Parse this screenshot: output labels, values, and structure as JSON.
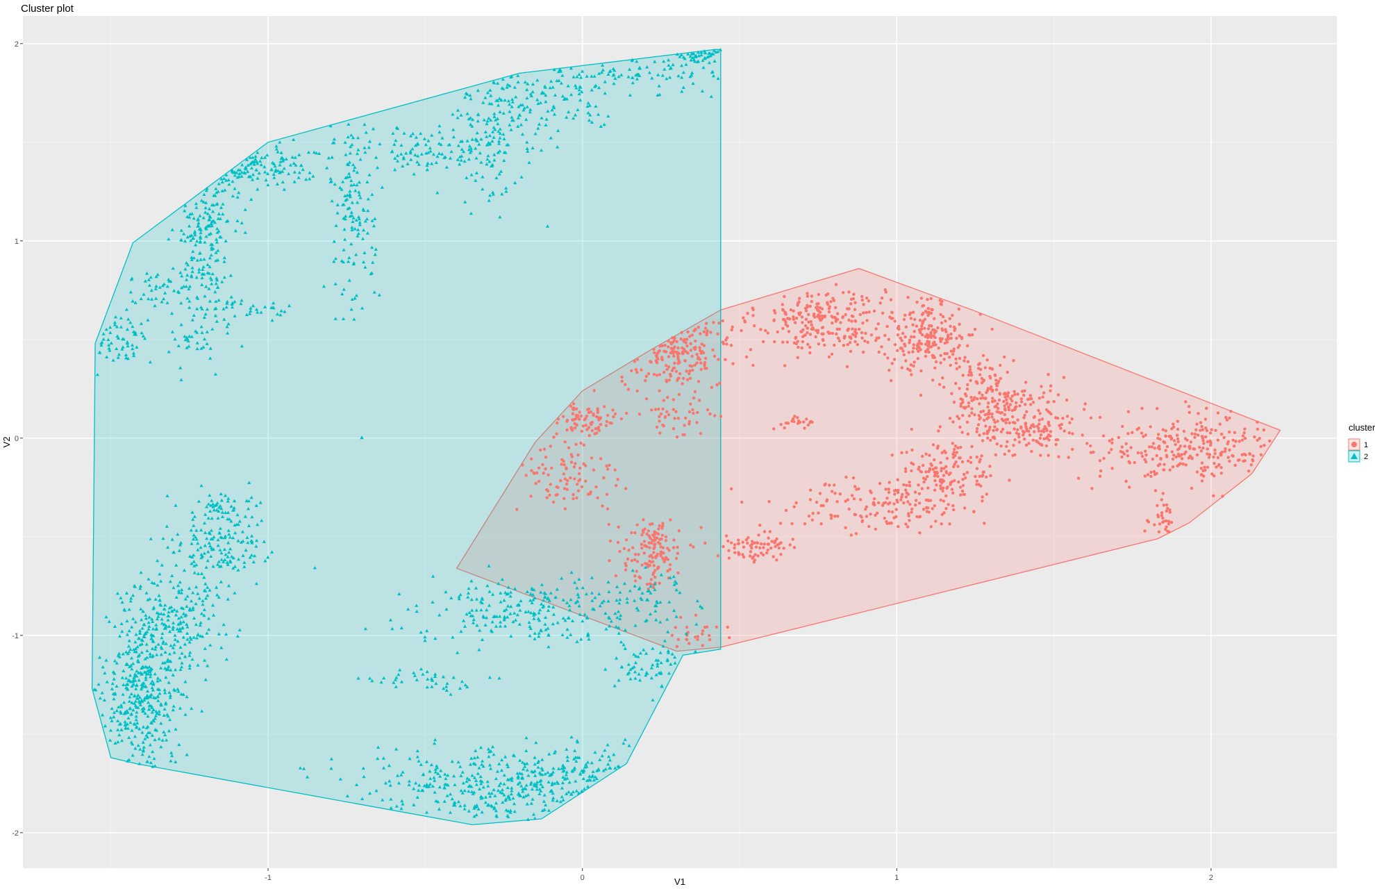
{
  "chart_data": {
    "type": "scatter",
    "title": "Cluster plot",
    "xlabel": "V1",
    "ylabel": "V2",
    "xlim": [
      -1.78,
      2.4
    ],
    "ylim": [
      -2.18,
      2.14
    ],
    "x_ticks": [
      -1,
      0,
      1,
      2
    ],
    "y_ticks": [
      -2,
      -1,
      0,
      1,
      2
    ],
    "grid": true,
    "legend": {
      "title": "cluster",
      "position": "right"
    },
    "series": [
      {
        "name": "1",
        "shape": "circle",
        "color": "#F8766D",
        "hull": [
          [
            -0.4,
            -0.66
          ],
          [
            -0.15,
            -0.02
          ],
          [
            0.0,
            0.24
          ],
          [
            0.22,
            0.45
          ],
          [
            0.44,
            0.65
          ],
          [
            0.88,
            0.86
          ],
          [
            1.24,
            0.65
          ],
          [
            2.22,
            0.04
          ],
          [
            2.13,
            -0.18
          ],
          [
            1.93,
            -0.43
          ],
          [
            1.83,
            -0.51
          ],
          [
            0.44,
            -1.06
          ],
          [
            0.3,
            -1.08
          ]
        ],
        "clusters": [
          {
            "x": 0.76,
            "y": 0.6,
            "sx": 0.1,
            "sy": 0.09,
            "n": 230
          },
          {
            "x": 1.1,
            "y": 0.52,
            "sx": 0.08,
            "sy": 0.1,
            "n": 220
          },
          {
            "x": 1.28,
            "y": 0.22,
            "sx": 0.07,
            "sy": 0.1,
            "n": 160
          },
          {
            "x": 1.42,
            "y": 0.08,
            "sx": 0.08,
            "sy": 0.09,
            "n": 180
          },
          {
            "x": 1.15,
            "y": -0.2,
            "sx": 0.08,
            "sy": 0.1,
            "n": 170
          },
          {
            "x": 1.95,
            "y": -0.05,
            "sx": 0.15,
            "sy": 0.09,
            "n": 260
          },
          {
            "x": 0.3,
            "y": 0.45,
            "sx": 0.09,
            "sy": 0.1,
            "n": 190
          },
          {
            "x": 0.22,
            "y": -0.58,
            "sx": 0.05,
            "sy": 0.09,
            "n": 140
          },
          {
            "x": 0.0,
            "y": 0.1,
            "sx": 0.06,
            "sy": 0.06,
            "n": 80
          },
          {
            "x": -0.05,
            "y": -0.2,
            "sx": 0.08,
            "sy": 0.1,
            "n": 90
          },
          {
            "x": 0.55,
            "y": -0.56,
            "sx": 0.07,
            "sy": 0.04,
            "n": 70
          },
          {
            "x": 0.88,
            "y": -0.35,
            "sx": 0.15,
            "sy": 0.07,
            "n": 130
          },
          {
            "x": 0.7,
            "y": 0.08,
            "sx": 0.04,
            "sy": 0.02,
            "n": 20
          },
          {
            "x": 1.85,
            "y": -0.42,
            "sx": 0.02,
            "sy": 0.05,
            "n": 30
          },
          {
            "x": 0.3,
            "y": 0.1,
            "sx": 0.06,
            "sy": 0.05,
            "n": 40
          },
          {
            "x": 0.35,
            "y": -0.98,
            "sx": 0.05,
            "sy": 0.05,
            "n": 25
          }
        ]
      },
      {
        "name": "2",
        "shape": "triangle",
        "color": "#00BFC4",
        "hull": [
          [
            -1.55,
            0.48
          ],
          [
            -1.43,
            0.99
          ],
          [
            -1.0,
            1.5
          ],
          [
            -0.2,
            1.85
          ],
          [
            0.42,
            1.97
          ],
          [
            0.44,
            1.97
          ],
          [
            0.44,
            -1.07
          ],
          [
            0.32,
            -1.1
          ],
          [
            0.14,
            -1.65
          ],
          [
            -0.13,
            -1.93
          ],
          [
            -0.35,
            -1.96
          ],
          [
            -1.42,
            -1.65
          ],
          [
            -1.5,
            -1.62
          ],
          [
            -1.56,
            -1.27
          ]
        ],
        "clusters": [
          {
            "x": -1.4,
            "y": -1.3,
            "sx": 0.06,
            "sy": 0.2,
            "n": 400
          },
          {
            "x": -1.3,
            "y": -0.9,
            "sx": 0.08,
            "sy": 0.15,
            "n": 220
          },
          {
            "x": -1.15,
            "y": -0.55,
            "sx": 0.08,
            "sy": 0.08,
            "n": 130
          },
          {
            "x": -0.1,
            "y": -1.75,
            "sx": 0.28,
            "sy": 0.09,
            "n": 420
          },
          {
            "x": -0.15,
            "y": -0.87,
            "sx": 0.2,
            "sy": 0.08,
            "n": 240
          },
          {
            "x": -1.2,
            "y": 1.05,
            "sx": 0.05,
            "sy": 0.28,
            "n": 220
          },
          {
            "x": -1.1,
            "y": 1.38,
            "sx": 0.12,
            "sy": 0.05,
            "n": 120
          },
          {
            "x": -0.73,
            "y": 1.2,
            "sx": 0.04,
            "sy": 0.25,
            "n": 140
          },
          {
            "x": -0.45,
            "y": 1.45,
            "sx": 0.12,
            "sy": 0.07,
            "n": 110
          },
          {
            "x": -0.3,
            "y": 1.6,
            "sx": 0.06,
            "sy": 0.2,
            "n": 110
          },
          {
            "x": -0.1,
            "y": 1.7,
            "sx": 0.1,
            "sy": 0.1,
            "n": 110
          },
          {
            "x": 0.2,
            "y": 1.85,
            "sx": 0.15,
            "sy": 0.06,
            "n": 90
          },
          {
            "x": 0.38,
            "y": 1.95,
            "sx": 0.04,
            "sy": 0.02,
            "n": 40
          },
          {
            "x": -1.48,
            "y": 0.5,
            "sx": 0.05,
            "sy": 0.07,
            "n": 60
          },
          {
            "x": -1.35,
            "y": 0.75,
            "sx": 0.05,
            "sy": 0.05,
            "n": 40
          },
          {
            "x": -1.05,
            "y": 0.65,
            "sx": 0.06,
            "sy": 0.03,
            "n": 25
          },
          {
            "x": -0.5,
            "y": -1.23,
            "sx": 0.1,
            "sy": 0.03,
            "n": 40
          },
          {
            "x": 0.25,
            "y": -1.15,
            "sx": 0.08,
            "sy": 0.06,
            "n": 60
          },
          {
            "x": 0.2,
            "y": -0.8,
            "sx": 0.1,
            "sy": 0.07,
            "n": 50
          },
          {
            "x": -1.15,
            "y": -0.35,
            "sx": 0.07,
            "sy": 0.04,
            "n": 50
          },
          {
            "x": -1.25,
            "y": 0.5,
            "sx": 0.03,
            "sy": 0.05,
            "n": 20
          },
          {
            "x": -0.7,
            "y": 0.0,
            "sx": 0.003,
            "sy": 0.003,
            "n": 2
          }
        ]
      }
    ]
  }
}
